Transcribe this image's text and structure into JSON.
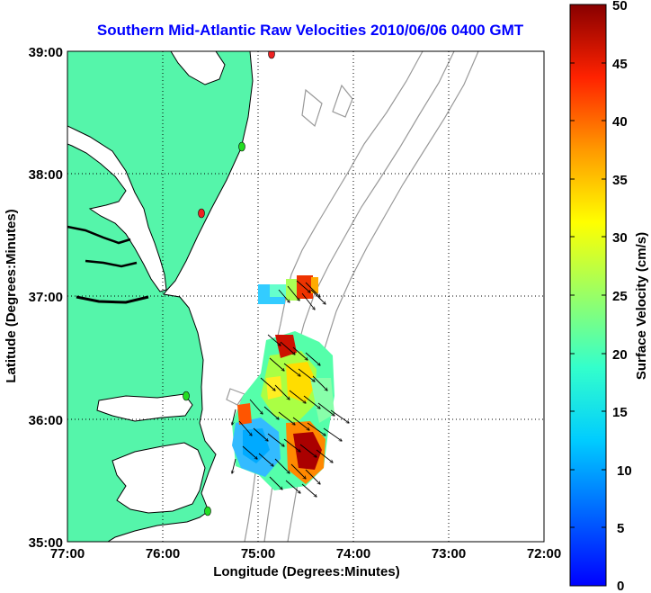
{
  "title": "Southern Mid-Atlantic Raw Velocities 2010/06/06 0400 GMT",
  "x_axis": {
    "label": "Longitude (Degrees:Minutes)",
    "ticks": [
      "77:00",
      "76:00",
      "75:00",
      "74:00",
      "73:00",
      "72:00"
    ]
  },
  "y_axis": {
    "label": "Latitude (Degrees:Minutes)",
    "ticks": [
      "39:00",
      "38:00",
      "37:00",
      "36:00",
      "35:00"
    ]
  },
  "colorbar": {
    "label": "Surface Velocity (cm/s)",
    "ticks": [
      "50",
      "45",
      "40",
      "35",
      "30",
      "25",
      "20",
      "15",
      "10",
      "5",
      "0"
    ],
    "min": 0,
    "max": 50,
    "colormap": "jet"
  },
  "map_extent": {
    "lon": [
      -77,
      -72
    ],
    "lat": [
      35,
      39
    ]
  },
  "grid": "dotted",
  "colors": {
    "land": "#55f5aa",
    "coastline": "#000000",
    "bathymetry": "#999999",
    "grid": "#000000",
    "title": "#0000ff",
    "station_active": "#22dd22",
    "station_inactive": "#ee2222"
  },
  "stations": [
    {
      "lon": -74.85,
      "lat": 38.98,
      "status": "inactive"
    },
    {
      "lon": -75.15,
      "lat": 38.22,
      "status": "active"
    },
    {
      "lon": -75.55,
      "lat": 37.7,
      "status": "inactive"
    },
    {
      "lon": -75.75,
      "lat": 36.18,
      "status": "active"
    },
    {
      "lon": -75.5,
      "lat": 35.23,
      "status": "active"
    }
  ]
}
